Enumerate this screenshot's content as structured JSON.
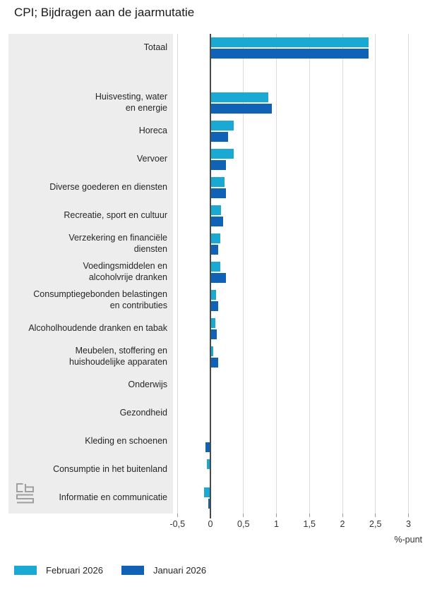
{
  "title": "CPI; Bijdragen aan de jaarmutatie",
  "chart_data": {
    "type": "bar",
    "orientation": "horizontal",
    "title": "CPI; Bijdragen aan de jaarmutatie",
    "xlabel": "%-punt",
    "ylabel": "",
    "xlim": [
      -0.5,
      3
    ],
    "grid": true,
    "legend_position": "bottom",
    "x_ticks": {
      "values": [
        -0.5,
        0,
        0.5,
        1,
        1.5,
        2,
        2.5,
        3
      ],
      "labels": [
        "-0,5",
        "0",
        "0,5",
        "1",
        "1,5",
        "2",
        "2,5",
        "3"
      ]
    },
    "categories": [
      "Totaal",
      "Huisvesting, water\nen energie",
      "Horeca",
      "Vervoer",
      "Diverse goederen en diensten",
      "Recreatie, sport en cultuur",
      "Verzekering en financiële\ndiensten",
      "Voedingsmiddelen en\nalcoholvrije dranken",
      "Consumptiegebonden belastingen\nen contributies",
      "Alcoholhoudende dranken en tabak",
      "Meubelen, stoffering en\nhuishoudelijke apparaten",
      "Onderwijs",
      "Gezondheid",
      "Kleding en schoenen",
      "Consumptie in het buitenland",
      "Informatie en communicatie"
    ],
    "series": [
      {
        "name": "Februari 2026",
        "color": "#1aa9d2",
        "values": [
          2.4,
          0.88,
          0.35,
          0.35,
          0.21,
          0.16,
          0.15,
          0.15,
          0.09,
          0.08,
          0.04,
          0,
          0,
          0,
          -0.05,
          -0.1
        ]
      },
      {
        "name": "Januari 2026",
        "color": "#0f62b6",
        "values": [
          2.4,
          0.93,
          0.27,
          0.24,
          0.24,
          0.19,
          0.12,
          0.23,
          0.12,
          0.1,
          0.12,
          0,
          0,
          -0.08,
          0,
          -0.03
        ]
      }
    ]
  },
  "legend": {
    "items": [
      {
        "label": "Februari 2026",
        "color": "#1aa9d2"
      },
      {
        "label": "Januari 2026",
        "color": "#0f62b6"
      }
    ]
  },
  "footer": {
    "logo_name": "cbs-logo"
  }
}
